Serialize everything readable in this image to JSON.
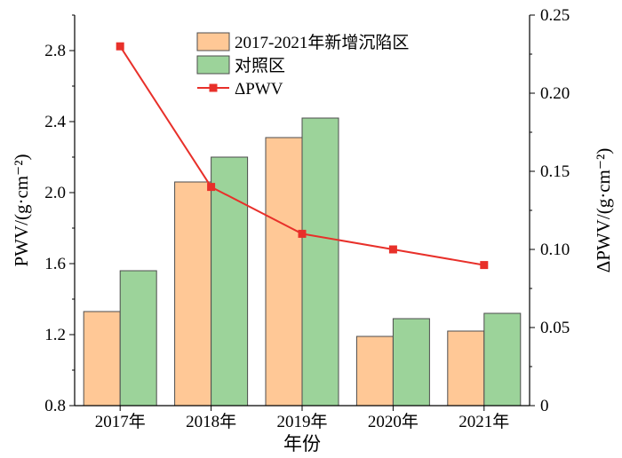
{
  "chart_data": {
    "type": "bar",
    "categories": [
      "2017年",
      "2018年",
      "2019年",
      "2020年",
      "2021年"
    ],
    "xlabel": "年份",
    "ylabel_left": "PWV/(g·cm⁻²)",
    "ylabel_right": "ΔPWV/(g·cm⁻²)",
    "ylim_left": [
      0.8,
      3.0
    ],
    "yticks_left": [
      "0.8",
      "1.2",
      "1.6",
      "2.0",
      "2.4",
      "2.8"
    ],
    "ylim_right": [
      0,
      0.25
    ],
    "yticks_right": [
      "0",
      "0.05",
      "0.10",
      "0.15",
      "0.20",
      "0.25"
    ],
    "legend_position": "top-center",
    "grid": false,
    "series": [
      {
        "name": "2017-2021年新增沉陷区",
        "type": "bar",
        "axis": "left",
        "color": "#FFC896",
        "values": [
          1.33,
          2.06,
          2.31,
          1.19,
          1.22
        ]
      },
      {
        "name": "对照区",
        "type": "bar",
        "axis": "left",
        "color": "#9CD39A",
        "values": [
          1.56,
          2.2,
          2.42,
          1.29,
          1.32
        ]
      },
      {
        "name": "ΔPWV",
        "type": "line",
        "axis": "right",
        "color": "#E8302A",
        "marker": "square",
        "values": [
          0.23,
          0.14,
          0.11,
          0.1,
          0.09
        ]
      }
    ]
  }
}
